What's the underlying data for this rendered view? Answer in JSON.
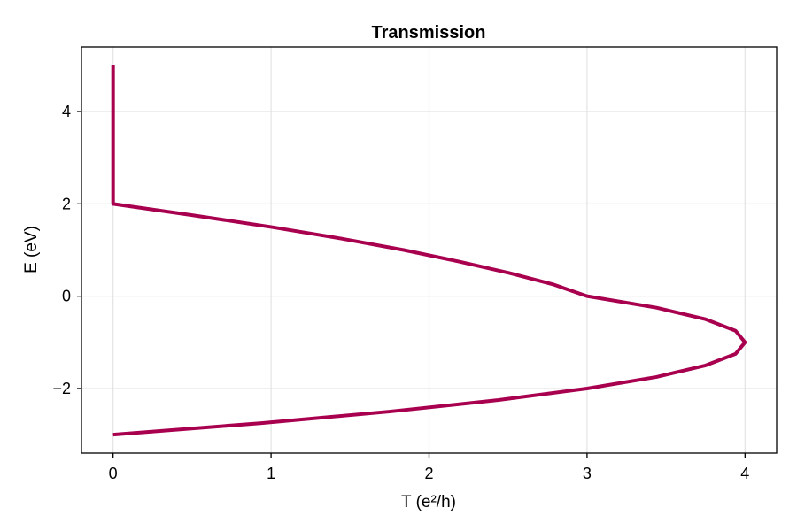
{
  "chart_data": {
    "type": "line",
    "title": "Transmission",
    "xlabel": "T (e²/h)",
    "ylabel": "E (eV)",
    "xlim": [
      -0.2,
      4.2
    ],
    "ylim": [
      -3.4,
      5.4
    ],
    "xticks": [
      0,
      1,
      2,
      3,
      4
    ],
    "xtick_labels": [
      "0",
      "1",
      "2",
      "3",
      "4"
    ],
    "yticks": [
      -2,
      0,
      2,
      4
    ],
    "ytick_labels": [
      "−2",
      "0",
      "2",
      "4"
    ],
    "grid": true,
    "series": [
      {
        "color": "#a8004f",
        "points": [
          [
            0,
            5.0
          ],
          [
            0,
            4.0
          ],
          [
            0,
            3.0
          ],
          [
            0,
            2.0
          ],
          [
            0.51,
            1.75
          ],
          [
            1.0,
            1.5
          ],
          [
            1.44,
            1.25
          ],
          [
            1.84,
            1.0
          ],
          [
            2.19,
            0.75
          ],
          [
            2.51,
            0.5
          ],
          [
            2.79,
            0.25
          ],
          [
            3.0,
            0.0
          ],
          [
            3.44,
            -0.25
          ],
          [
            3.75,
            -0.5
          ],
          [
            3.94,
            -0.75
          ],
          [
            4.0,
            -1.0
          ],
          [
            3.94,
            -1.25
          ],
          [
            3.75,
            -1.5
          ],
          [
            3.44,
            -1.75
          ],
          [
            3.0,
            -2.0
          ],
          [
            2.44,
            -2.25
          ],
          [
            1.75,
            -2.5
          ],
          [
            0.94,
            -2.75
          ],
          [
            0,
            -3.0
          ]
        ]
      }
    ]
  }
}
